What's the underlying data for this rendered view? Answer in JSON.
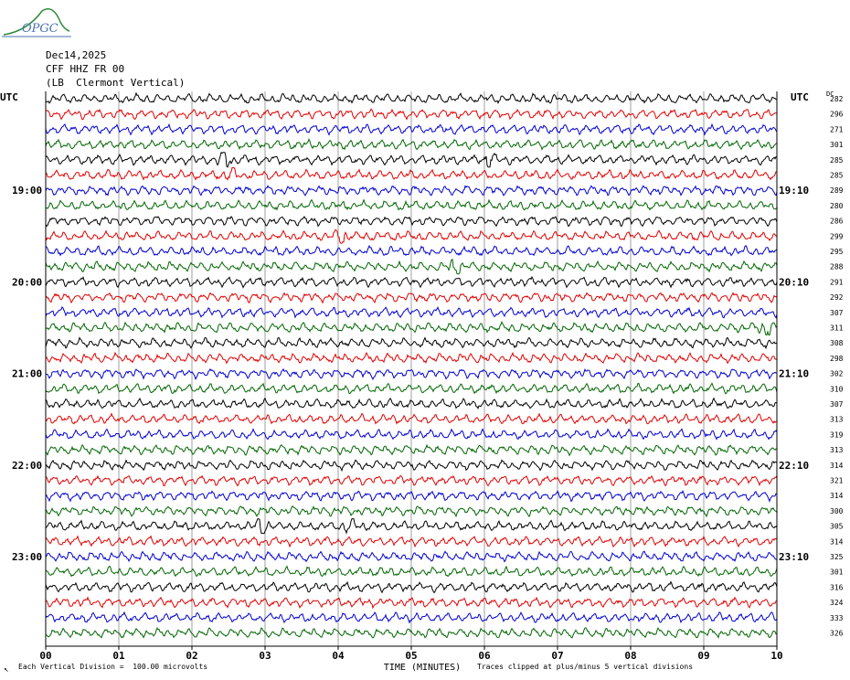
{
  "header": {
    "date": "Dec14,2025",
    "station": "CFF HHZ FR 00",
    "location": "(LB  Clermont Vertical)",
    "logo_text": "OPGC"
  },
  "footer": {
    "scale_note": "Each Vertical Division =  100.00 microvolts",
    "clip_note": "Traces clipped at plus/minus 5 vertical divisions",
    "corner_mark": "↖"
  },
  "chart_data": {
    "type": "line",
    "title": "",
    "xlabel": "TIME (MINUTES)",
    "ylabel_left": "UTC",
    "ylabel_right": "UTC",
    "dc_label": "DC",
    "xlim": [
      0,
      10
    ],
    "x_ticks": [
      "00",
      "01",
      "02",
      "03",
      "04",
      "05",
      "06",
      "07",
      "08",
      "09",
      "10"
    ],
    "grid_x": true,
    "trace_colors": [
      "#000000",
      "#e00000",
      "#0000d0",
      "#006600"
    ],
    "left_hour_labels": [
      {
        "label": "19:00",
        "trace": 6
      },
      {
        "label": "20:00",
        "trace": 12
      },
      {
        "label": "21:00",
        "trace": 18
      },
      {
        "label": "22:00",
        "trace": 24
      },
      {
        "label": "23:00",
        "trace": 30
      }
    ],
    "right_hour_labels": [
      {
        "label": "19:10",
        "trace": 6
      },
      {
        "label": "20:10",
        "trace": 12
      },
      {
        "label": "21:10",
        "trace": 18
      },
      {
        "label": "22:10",
        "trace": 24
      },
      {
        "label": "23:10",
        "trace": 30
      }
    ],
    "dc_values": [
      282,
      296,
      271,
      301,
      285,
      285,
      289,
      280,
      286,
      299,
      295,
      288,
      291,
      292,
      307,
      311,
      308,
      298,
      302,
      310,
      307,
      313,
      319,
      313,
      314,
      321,
      314,
      300,
      305,
      314,
      325,
      301,
      316,
      324,
      333,
      326
    ],
    "events": [
      {
        "trace": 4,
        "minute": 2.45,
        "amplitude": 2.2
      },
      {
        "trace": 4,
        "minute": 6.05,
        "amplitude": 1.4
      },
      {
        "trace": 5,
        "minute": 2.55,
        "amplitude": 1.2
      },
      {
        "trace": 9,
        "minute": 4.05,
        "amplitude": 1.3
      },
      {
        "trace": 11,
        "minute": 5.6,
        "amplitude": 1.3
      },
      {
        "trace": 15,
        "minute": 9.85,
        "amplitude": 1.5
      },
      {
        "trace": 28,
        "minute": 2.95,
        "amplitude": 1.8
      },
      {
        "trace": 28,
        "minute": 4.15,
        "amplitude": 1.4
      }
    ]
  }
}
